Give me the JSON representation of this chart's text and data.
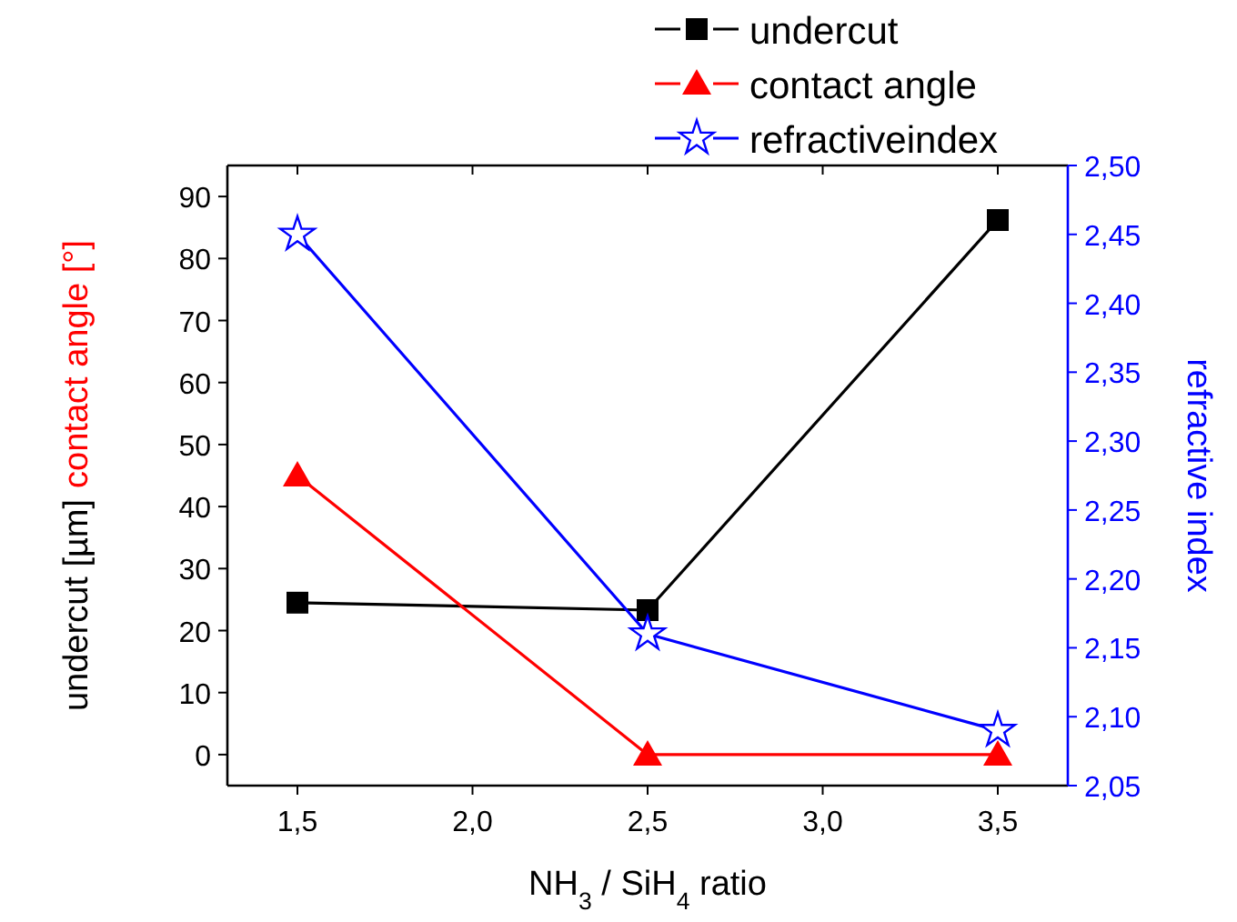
{
  "chart_data": {
    "type": "line",
    "xlabel": "NH$_{3}$ / SiH$_{4}$ ratio",
    "ylabel": [
      "undercut [µm]",
      "contact angle [°]"
    ],
    "y2label": "refractive index",
    "x": [
      1.5,
      2.5,
      3.5
    ],
    "series": [
      {
        "name": "undercut",
        "color": "#000000",
        "marker": "square",
        "values": [
          24.5,
          23.3,
          86.2
        ]
      },
      {
        "name": "contact angle",
        "color": "#ff0000",
        "marker": "triangle",
        "values": [
          45,
          0,
          0
        ]
      },
      {
        "name": "refractiveindex",
        "color": "#0000ff",
        "marker": "star",
        "axis": "y2",
        "values": [
          2.45,
          2.16,
          2.09
        ]
      }
    ],
    "xlim": [
      1.3,
      3.7
    ],
    "xticks": [
      {
        "value": 1.5,
        "label": "1,5"
      },
      {
        "value": 2,
        "label": "2,0"
      },
      {
        "value": 2.5,
        "label": "2,5"
      },
      {
        "value": 3,
        "label": "3,0"
      },
      {
        "value": 3.5,
        "label": "3,5"
      }
    ],
    "ylim": [
      -5,
      95
    ],
    "yticks": [
      0,
      10,
      20,
      30,
      40,
      50,
      60,
      70,
      80,
      90
    ],
    "y2lim": [
      2.05,
      2.5
    ],
    "y2ticks": [
      {
        "value": 2.05,
        "label": "2,05"
      },
      {
        "value": 2.1,
        "label": "2,10"
      },
      {
        "value": 2.15,
        "label": "2,15"
      },
      {
        "value": 2.2,
        "label": "2,20"
      },
      {
        "value": 2.25,
        "label": "2,25"
      },
      {
        "value": 2.3,
        "label": "2,30"
      },
      {
        "value": 2.35,
        "label": "2,35"
      },
      {
        "value": 2.4,
        "label": "2,40"
      },
      {
        "value": 2.45,
        "label": "2,45"
      },
      {
        "value": 2.5,
        "label": "2,50"
      }
    ],
    "legend": "top right",
    "grid": false
  }
}
